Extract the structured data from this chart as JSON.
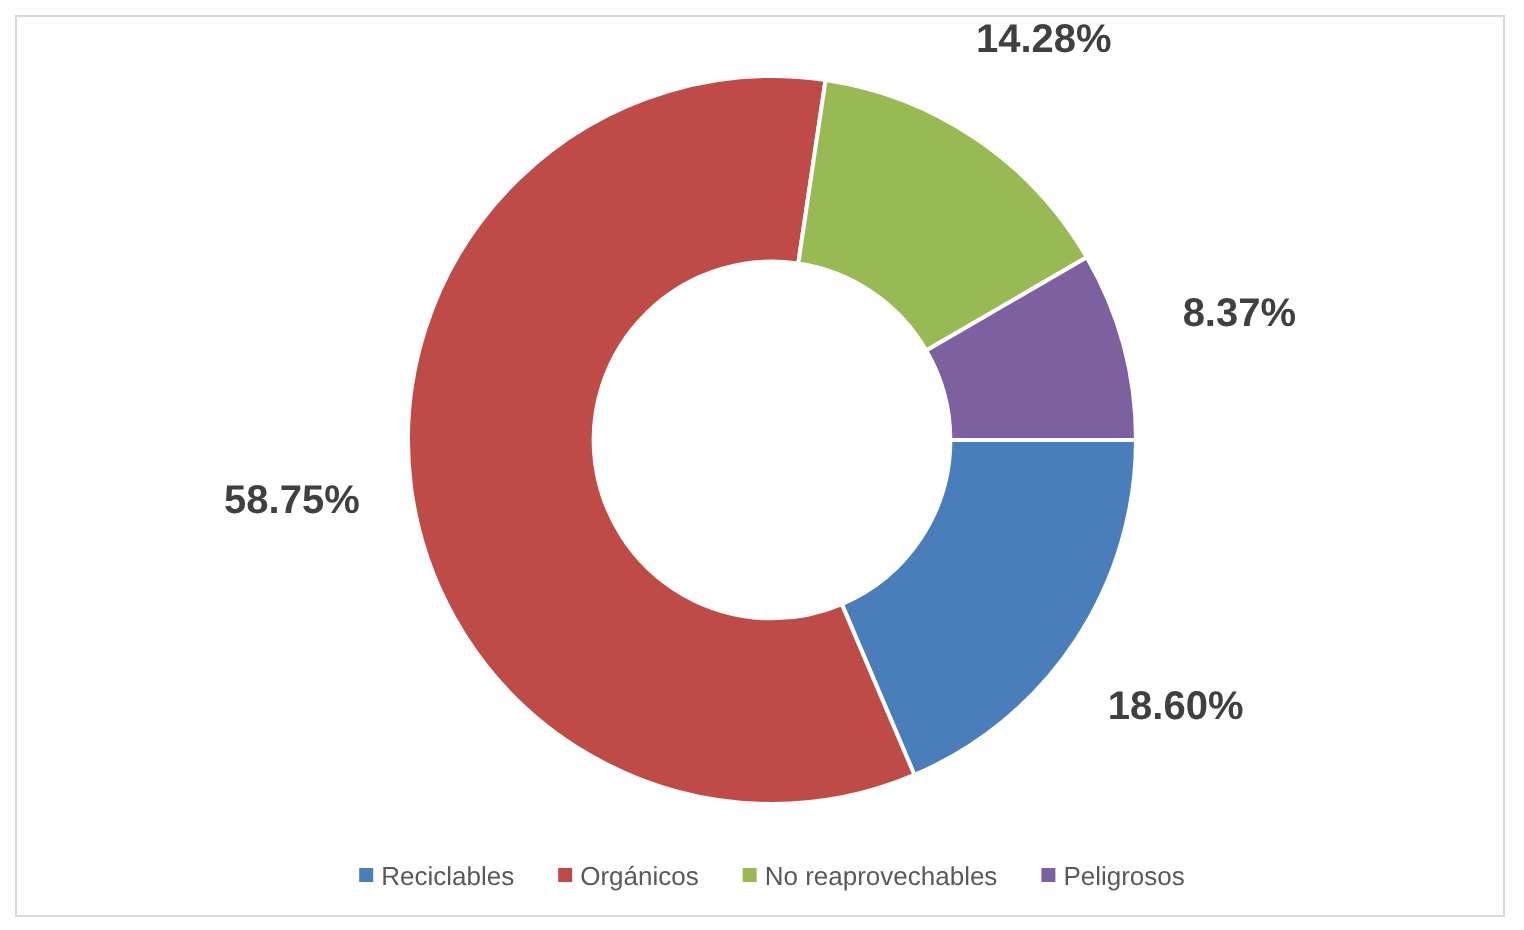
{
  "chart_data": {
    "type": "donut",
    "categories": [
      "Reciclables",
      "Orgánicos",
      "No reaprovechables",
      "Peligrosos"
    ],
    "values": [
      18.6,
      58.75,
      14.28,
      8.37
    ],
    "colors": [
      "#4a7ebb",
      "#be4b48",
      "#98b954",
      "#7d60a0"
    ],
    "value_labels": [
      "18.60%",
      "58.75%",
      "14.28%",
      "8.37%"
    ],
    "legend": "bottom"
  }
}
